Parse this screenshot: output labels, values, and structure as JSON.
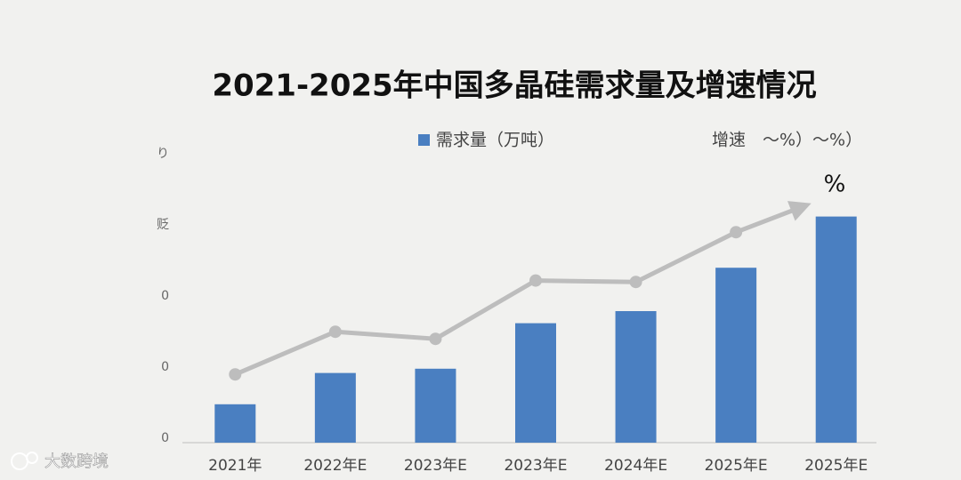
{
  "chart_data": {
    "type": "bar",
    "title": "2021-2025年中国多晶硅需求量及增速情况",
    "categories": [
      "2021年",
      "2022年E",
      "2023年E",
      "2023年E",
      "2024年E",
      "2025年E",
      "2025年E"
    ],
    "series": [
      {
        "name": "需求量（万吨）",
        "color": "#4a7fc1",
        "values": [
          54,
          98,
          104,
          168,
          185,
          246,
          318
        ]
      },
      {
        "name": "增速　～%）～%）",
        "color": "#bdbdbd",
        "axis": "y2",
        "type": "line",
        "values": [
          24,
          39,
          36.5,
          57,
          56.5,
          74,
          87.5
        ]
      }
    ],
    "ylim": [
      0,
      400
    ],
    "y2lim": [
      0,
      100
    ],
    "y_axis_labels": [
      "0",
      "0",
      "0",
      "贬",
      "り"
    ],
    "annotation": "%",
    "watermark": "大数跨境"
  }
}
